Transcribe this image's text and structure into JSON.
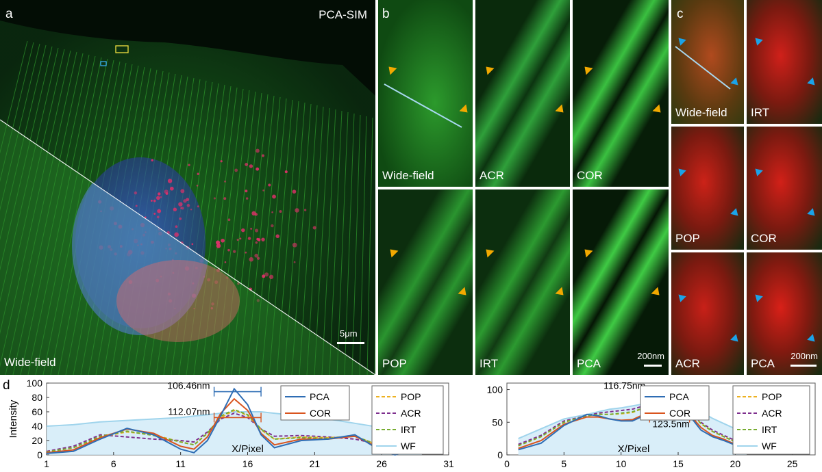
{
  "panel_a": {
    "panel_letter": "a",
    "top_label": "PCA-SIM",
    "bottom_label": "Wide-field",
    "scalebar": "5μm"
  },
  "panel_b": {
    "panel_letter": "b",
    "tiles": [
      "Wide-field",
      "ACR",
      "COR",
      "POP",
      "IRT",
      "PCA"
    ],
    "scalebar": "200nm"
  },
  "panel_c": {
    "panel_letter": "c",
    "tiles": [
      "Wide-field",
      "IRT",
      "POP",
      "COR",
      "ACR",
      "PCA"
    ],
    "scalebar": "200nm"
  },
  "panel_d": {
    "panel_letter": "d"
  },
  "colors": {
    "PCA": "#2e6db4",
    "COR": "#d9541e",
    "POP": "#edb120",
    "ACR": "#7e2f8e",
    "IRT": "#77ac30",
    "WF": "#9fd4ec",
    "arrow_yellow": "#f2a900",
    "arrow_blue": "#1ba3e8"
  },
  "chart_data": [
    {
      "type": "line",
      "ylabel": "Intensity",
      "xlabel": "X/Pixel",
      "xlim": [
        1,
        31
      ],
      "ylim": [
        0,
        100
      ],
      "xticks": [
        "1",
        "6",
        "11",
        "16",
        "21",
        "26",
        "31"
      ],
      "yticks": [
        "0",
        "20",
        "40",
        "60",
        "80",
        "100"
      ],
      "legend": [
        "PCA",
        "COR",
        "POP",
        "ACR",
        "IRT",
        "WF"
      ],
      "annotations": [
        "106.46nm",
        "112.07nm"
      ],
      "series": [
        {
          "name": "PCA",
          "x": [
            1,
            3,
            5,
            7,
            9,
            11,
            12,
            13,
            14,
            15,
            16,
            17,
            18,
            20,
            22,
            24,
            26,
            27,
            28,
            29
          ],
          "y": [
            2,
            5,
            22,
            37,
            28,
            8,
            3,
            20,
            55,
            92,
            70,
            28,
            10,
            20,
            22,
            28,
            5,
            0,
            5,
            5
          ]
        },
        {
          "name": "COR",
          "x": [
            1,
            3,
            5,
            7,
            9,
            11,
            12,
            13,
            14,
            15,
            16,
            17,
            18,
            20,
            22,
            24,
            26,
            27,
            28,
            29
          ],
          "y": [
            3,
            7,
            24,
            36,
            30,
            12,
            8,
            25,
            58,
            78,
            62,
            30,
            14,
            22,
            22,
            26,
            8,
            2,
            6,
            6
          ]
        },
        {
          "name": "POP",
          "x": [
            1,
            3,
            5,
            7,
            9,
            11,
            12,
            13,
            14,
            15,
            16,
            17,
            18,
            20,
            22,
            24,
            26,
            27,
            28,
            29
          ],
          "y": [
            4,
            10,
            25,
            32,
            28,
            18,
            14,
            30,
            52,
            62,
            55,
            35,
            22,
            25,
            24,
            26,
            12,
            6,
            8,
            8
          ]
        },
        {
          "name": "ACR",
          "x": [
            1,
            3,
            5,
            7,
            9,
            11,
            12,
            13,
            14,
            15,
            16,
            17,
            18,
            20,
            22,
            24,
            26,
            27,
            28,
            29
          ],
          "y": [
            5,
            12,
            28,
            25,
            22,
            20,
            18,
            32,
            50,
            58,
            52,
            36,
            26,
            27,
            25,
            22,
            14,
            8,
            8,
            8
          ]
        },
        {
          "name": "IRT",
          "x": [
            1,
            3,
            5,
            7,
            9,
            11,
            12,
            13,
            14,
            15,
            16,
            17,
            18,
            20,
            22,
            24,
            26,
            27,
            28,
            29
          ],
          "y": [
            4,
            10,
            26,
            33,
            27,
            18,
            14,
            30,
            54,
            63,
            56,
            36,
            22,
            24,
            23,
            26,
            12,
            6,
            8,
            8
          ]
        },
        {
          "name": "WF",
          "x": [
            1,
            3,
            5,
            7,
            9,
            11,
            12,
            13,
            14,
            15,
            16,
            17,
            18,
            20,
            22,
            24,
            26,
            27,
            28,
            29
          ],
          "y": [
            40,
            42,
            46,
            48,
            50,
            52,
            54,
            56,
            58,
            60,
            60,
            60,
            58,
            54,
            50,
            44,
            38,
            34,
            32,
            30
          ]
        }
      ]
    },
    {
      "type": "line",
      "xlabel": "X/Pixel",
      "xlim": [
        0,
        27
      ],
      "ylim": [
        0,
        110
      ],
      "xticks": [
        "0",
        "5",
        "10",
        "15",
        "20",
        "25"
      ],
      "yticks": [
        "0",
        "50",
        "100"
      ],
      "legend": [
        "PCA",
        "COR",
        "POP",
        "ACR",
        "IRT",
        "WF"
      ],
      "annotations": [
        "116.75nm",
        "123.5nm"
      ],
      "series": [
        {
          "name": "PCA",
          "x": [
            1,
            3,
            5,
            7,
            8,
            9,
            10,
            11,
            12,
            13,
            14,
            15,
            16,
            17,
            18,
            19,
            20,
            21
          ],
          "y": [
            8,
            18,
            45,
            62,
            60,
            55,
            52,
            52,
            60,
            88,
            103,
            85,
            60,
            38,
            28,
            22,
            15,
            10
          ]
        },
        {
          "name": "COR",
          "x": [
            1,
            3,
            5,
            7,
            8,
            9,
            10,
            11,
            12,
            13,
            14,
            15,
            16,
            17,
            18,
            19,
            20,
            21
          ],
          "y": [
            10,
            22,
            47,
            58,
            58,
            55,
            53,
            54,
            62,
            82,
            90,
            80,
            62,
            42,
            30,
            24,
            16,
            10
          ]
        },
        {
          "name": "POP",
          "x": [
            1,
            3,
            5,
            7,
            8,
            9,
            10,
            11,
            12,
            13,
            14,
            15,
            16,
            17,
            18,
            19,
            20,
            21
          ],
          "y": [
            14,
            28,
            50,
            60,
            62,
            62,
            63,
            65,
            72,
            82,
            85,
            80,
            66,
            48,
            36,
            28,
            20,
            14
          ]
        },
        {
          "name": "ACR",
          "x": [
            1,
            3,
            5,
            7,
            8,
            9,
            10,
            11,
            12,
            13,
            14,
            15,
            16,
            17,
            18,
            19,
            20,
            21
          ],
          "y": [
            16,
            30,
            52,
            60,
            64,
            66,
            68,
            70,
            75,
            80,
            82,
            78,
            66,
            50,
            38,
            30,
            22,
            15
          ]
        },
        {
          "name": "IRT",
          "x": [
            1,
            3,
            5,
            7,
            8,
            9,
            10,
            11,
            12,
            13,
            14,
            15,
            16,
            17,
            18,
            19,
            20,
            21
          ],
          "y": [
            14,
            28,
            50,
            60,
            62,
            62,
            64,
            66,
            72,
            82,
            84,
            79,
            66,
            48,
            36,
            28,
            20,
            14
          ]
        },
        {
          "name": "WF",
          "x": [
            1,
            3,
            5,
            7,
            8,
            9,
            10,
            11,
            12,
            13,
            14,
            15,
            16,
            17,
            18,
            19,
            20,
            21
          ],
          "y": [
            25,
            40,
            55,
            62,
            66,
            70,
            72,
            75,
            78,
            80,
            80,
            78,
            74,
            66,
            56,
            48,
            40,
            33
          ]
        }
      ]
    }
  ]
}
